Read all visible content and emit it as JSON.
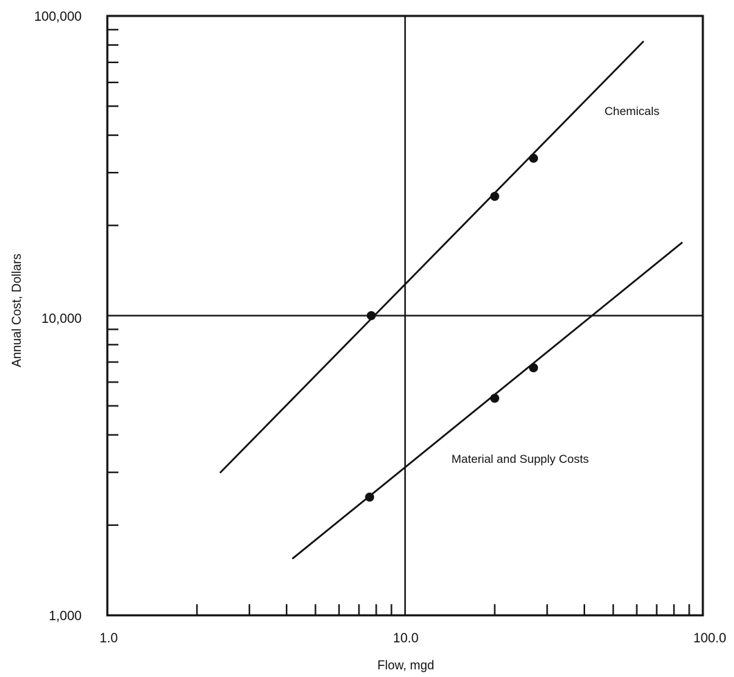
{
  "chart_data": {
    "type": "line",
    "xlabel": "Flow, mgd",
    "ylabel": "Annual Cost, Dollars",
    "x_scale": "log",
    "y_scale": "log",
    "xlim": [
      1.0,
      100.0
    ],
    "ylim": [
      1000,
      100000
    ],
    "x_tick_labels": [
      "1.0",
      "10.0",
      "100.0"
    ],
    "y_tick_labels": [
      "1,000",
      "10,000",
      "100,000"
    ],
    "grid": "major lines at x = 10.0 and y = 10,000",
    "series": [
      {
        "name": "Chemicals",
        "line": [
          {
            "x": 2.4,
            "y": 3000
          },
          {
            "x": 63,
            "y": 82000
          }
        ],
        "points": [
          {
            "x": 7.7,
            "y": 10000
          },
          {
            "x": 20,
            "y": 25000
          },
          {
            "x": 27,
            "y": 33500
          }
        ]
      },
      {
        "name": "Material and Supply Costs",
        "line": [
          {
            "x": 4.2,
            "y": 1550
          },
          {
            "x": 85,
            "y": 17500
          }
        ],
        "points": [
          {
            "x": 7.6,
            "y": 2480
          },
          {
            "x": 20,
            "y": 5300
          },
          {
            "x": 27,
            "y": 6700
          }
        ]
      }
    ],
    "colors": {
      "ink": "#111111",
      "background": "#ffffff"
    }
  }
}
